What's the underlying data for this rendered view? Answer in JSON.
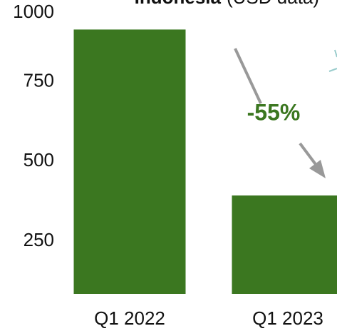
{
  "chart_data": {
    "type": "bar",
    "title": "Indonesia",
    "subtitle": "(USD data)",
    "categories": [
      "Q1 2022",
      "Q1 2023"
    ],
    "values": [
      914,
      393
    ],
    "color": "#3b7720",
    "ylim": [
      84,
      1000
    ],
    "yticks": [
      250,
      500,
      750,
      1000
    ],
    "annotation": "-55%"
  }
}
